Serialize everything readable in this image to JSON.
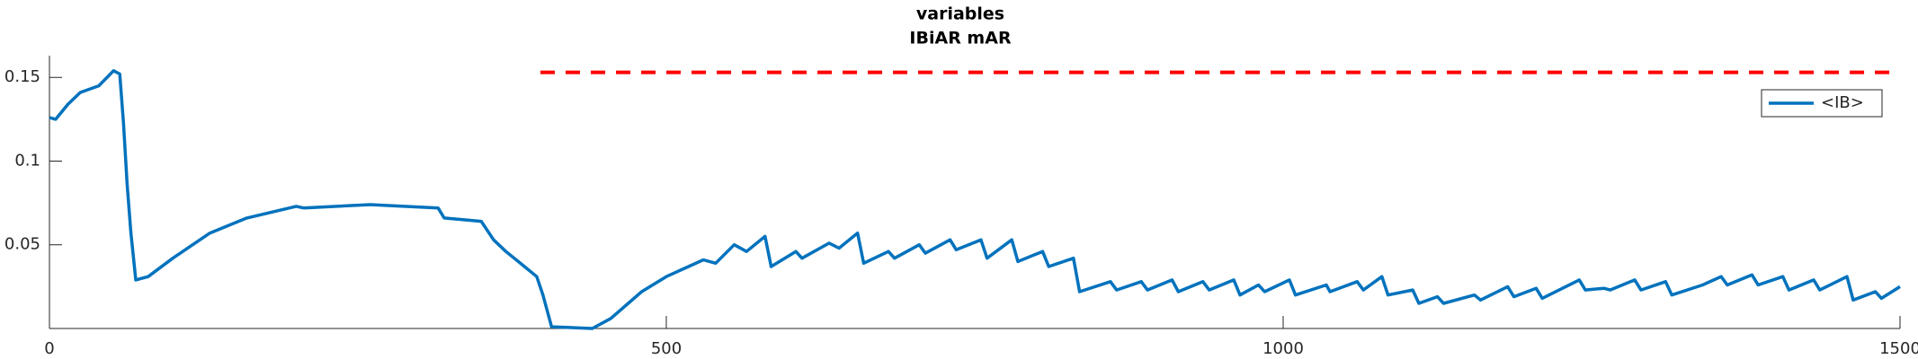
{
  "chart_data": {
    "type": "line",
    "title": "variables",
    "subtitle": "IBiAR mAR",
    "x": [
      0,
      5,
      15,
      25,
      40,
      52,
      57,
      60,
      63,
      66,
      70,
      80,
      100,
      130,
      160,
      200,
      206,
      260,
      315,
      320,
      350,
      360,
      370,
      380,
      395,
      400,
      407,
      440,
      455,
      480,
      500,
      530,
      540,
      555,
      565,
      580,
      585,
      605,
      610,
      632,
      640,
      655,
      660,
      680,
      685,
      705,
      710,
      730,
      735,
      755,
      760,
      780,
      785,
      805,
      810,
      830,
      835,
      860,
      865,
      885,
      890,
      910,
      915,
      935,
      940,
      960,
      965,
      980,
      985,
      1005,
      1010,
      1035,
      1038,
      1060,
      1065,
      1080,
      1085,
      1105,
      1110,
      1125,
      1130,
      1155,
      1160,
      1182,
      1187,
      1205,
      1210,
      1240,
      1245,
      1260,
      1265,
      1285,
      1290,
      1310,
      1315,
      1340,
      1355,
      1360,
      1380,
      1385,
      1405,
      1410,
      1430,
      1435,
      1457,
      1462,
      1480,
      1485,
      1500
    ],
    "series": [
      {
        "name": "<IB>",
        "color": "#0072bd",
        "values": [
          0.126,
          0.125,
          0.134,
          0.141,
          0.145,
          0.154,
          0.152,
          0.123,
          0.086,
          0.057,
          0.029,
          0.031,
          0.042,
          0.057,
          0.066,
          0.073,
          0.072,
          0.074,
          0.072,
          0.066,
          0.064,
          0.053,
          0.046,
          0.04,
          0.031,
          0.02,
          0.001,
          0,
          0.006,
          0.022,
          0.031,
          0.041,
          0.039,
          0.05,
          0.046,
          0.055,
          0.037,
          0.046,
          0.042,
          0.051,
          0.048,
          0.057,
          0.039,
          0.046,
          0.042,
          0.05,
          0.045,
          0.053,
          0.047,
          0.053,
          0.042,
          0.053,
          0.04,
          0.046,
          0.037,
          0.042,
          0.022,
          0.028,
          0.023,
          0.028,
          0.023,
          0.029,
          0.022,
          0.028,
          0.023,
          0.029,
          0.02,
          0.026,
          0.022,
          0.029,
          0.02,
          0.026,
          0.022,
          0.028,
          0.023,
          0.031,
          0.02,
          0.023,
          0.015,
          0.019,
          0.015,
          0.02,
          0.017,
          0.025,
          0.019,
          0.024,
          0.018,
          0.029,
          0.023,
          0.024,
          0.023,
          0.029,
          0.023,
          0.028,
          0.02,
          0.026,
          0.031,
          0.026,
          0.032,
          0.026,
          0.031,
          0.023,
          0.029,
          0.023,
          0.031,
          0.017,
          0.022,
          0.018,
          0.025
        ]
      }
    ],
    "reference_line": {
      "value": 0.153,
      "x": [
        398,
        1500
      ],
      "color": "#ff0000"
    },
    "xlim": [
      0,
      1500
    ],
    "xticks": [
      0,
      500,
      1000,
      1500
    ],
    "ylim": [
      0,
      0.163
    ],
    "yticks": [
      0.05,
      0.1,
      0.15
    ],
    "legend": "upper right"
  }
}
